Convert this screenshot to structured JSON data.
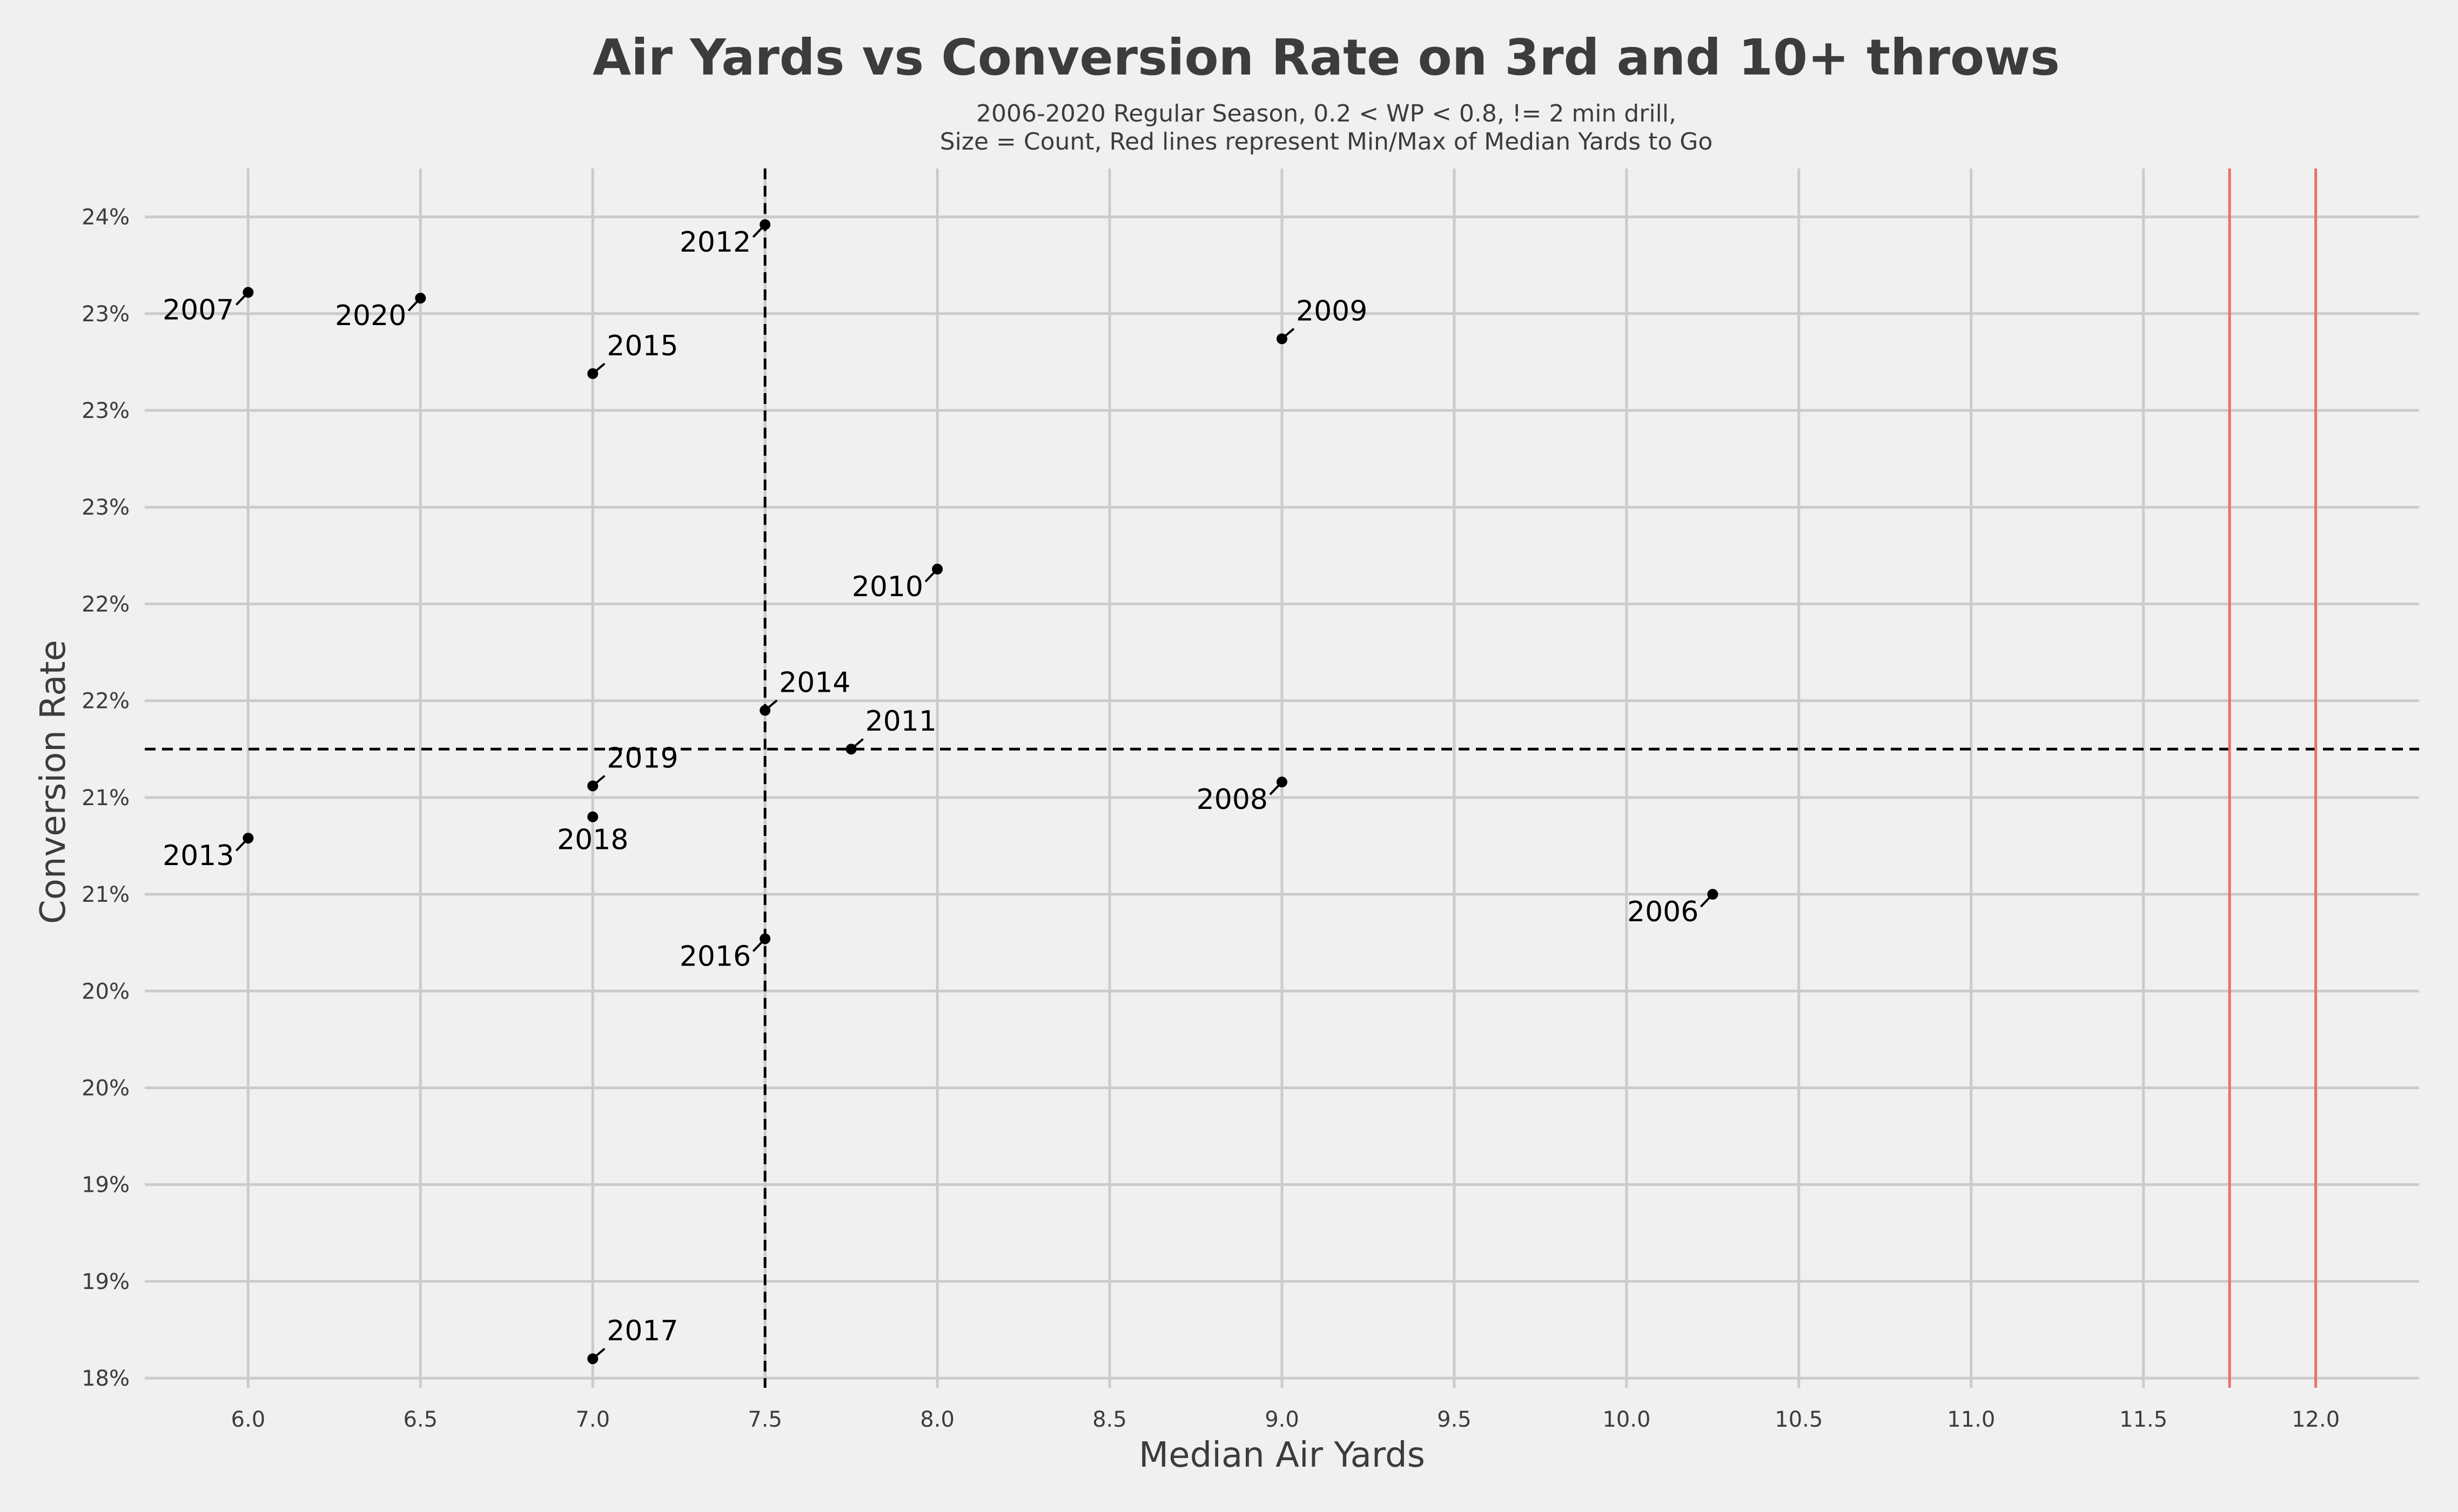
{
  "chart_data": {
    "type": "scatter",
    "title": "Air Yards vs Conversion Rate on 3rd and 10+ throws",
    "subtitle_lines": [
      "2006-2020 Regular Season, 0.2 < WP < 0.8, != 2 min drill,",
      "Size = Count, Red lines represent Min/Max of Median Yards to Go"
    ],
    "xlabel": "Median Air Yards",
    "ylabel": "Conversion Rate",
    "xlim": [
      5.7,
      12.3
    ],
    "ylim": [
      0.1795,
      0.2425
    ],
    "x_ticks": [
      6.0,
      6.5,
      7.0,
      7.5,
      8.0,
      8.5,
      9.0,
      9.5,
      10.0,
      10.5,
      11.0,
      11.5,
      12.0
    ],
    "x_tick_labels": [
      "6.0",
      "6.5",
      "7.0",
      "7.5",
      "8.0",
      "8.5",
      "9.0",
      "9.5",
      "10.0",
      "10.5",
      "11.0",
      "11.5",
      "12.0"
    ],
    "y_ticks": [
      0.18,
      0.185,
      0.19,
      0.195,
      0.2,
      0.205,
      0.21,
      0.215,
      0.22,
      0.225,
      0.23,
      0.235,
      0.24
    ],
    "y_tick_labels": [
      "18%",
      "19%",
      "19%",
      "20%",
      "20%",
      "21%",
      "21%",
      "22%",
      "22%",
      "23%",
      "23%",
      "23%",
      "24%"
    ],
    "grid": true,
    "points": [
      {
        "label": "2006",
        "x": 10.25,
        "y": 0.205
      },
      {
        "label": "2007",
        "x": 6.0,
        "y": 0.2361
      },
      {
        "label": "2008",
        "x": 9.0,
        "y": 0.2108
      },
      {
        "label": "2009",
        "x": 9.0,
        "y": 0.2337
      },
      {
        "label": "2010",
        "x": 8.0,
        "y": 0.2218
      },
      {
        "label": "2011",
        "x": 7.75,
        "y": 0.2125
      },
      {
        "label": "2012",
        "x": 7.5,
        "y": 0.2396
      },
      {
        "label": "2013",
        "x": 6.0,
        "y": 0.2079
      },
      {
        "label": "2014",
        "x": 7.5,
        "y": 0.2145
      },
      {
        "label": "2015",
        "x": 7.0,
        "y": 0.2319
      },
      {
        "label": "2016",
        "x": 7.5,
        "y": 0.2027
      },
      {
        "label": "2017",
        "x": 7.0,
        "y": 0.181
      },
      {
        "label": "2018",
        "x": 7.0,
        "y": 0.209
      },
      {
        "label": "2019",
        "x": 7.0,
        "y": 0.2106
      },
      {
        "label": "2020",
        "x": 6.5,
        "y": 0.2358
      }
    ],
    "reference_lines": {
      "vertical_dashed_x": 7.5,
      "horizontal_dashed_y": 0.2125,
      "red_vertical_x": [
        11.75,
        12.0
      ]
    },
    "colors": {
      "background": "#f0f0f0",
      "grid": "#cbcbcb",
      "points": "#000000",
      "red_lines": "#e8716d",
      "text": "#3c3c3c"
    }
  }
}
